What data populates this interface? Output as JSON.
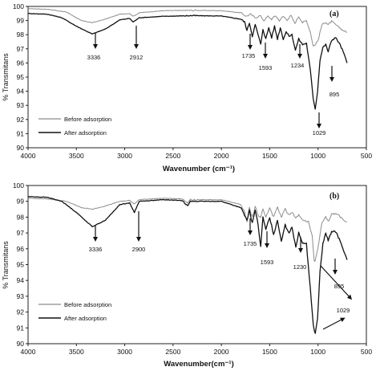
{
  "chart_data": [
    {
      "type": "line",
      "panel_label": "(a)",
      "xlabel": "Wavenumber (cm⁻¹)",
      "ylabel": "% Transmitans",
      "xlim": [
        4000,
        500
      ],
      "ylim": [
        90,
        100
      ],
      "x_ticks": [
        "4000",
        "3500",
        "3000",
        "2500",
        "2000",
        "1500",
        "1000",
        "500"
      ],
      "y_ticks": [
        "90",
        "91",
        "92",
        "93",
        "94",
        "95",
        "96",
        "97",
        "98",
        "99",
        "100"
      ],
      "legend_position": "bottom-left",
      "series": [
        {
          "name": "Before adsorption",
          "color": "#8c8c8c",
          "points": [
            [
              4000,
              99.85
            ],
            [
              3800,
              99.8
            ],
            [
              3600,
              99.6
            ],
            [
              3450,
              99.0
            ],
            [
              3336,
              98.85
            ],
            [
              3200,
              99.1
            ],
            [
              3050,
              99.45
            ],
            [
              2950,
              99.5
            ],
            [
              2912,
              99.3
            ],
            [
              2850,
              99.55
            ],
            [
              2600,
              99.7
            ],
            [
              2300,
              99.72
            ],
            [
              2000,
              99.7
            ],
            [
              1800,
              99.55
            ],
            [
              1740,
              99.3
            ],
            [
              1700,
              99.45
            ],
            [
              1650,
              99.2
            ],
            [
              1600,
              99.35
            ],
            [
              1560,
              99.0
            ],
            [
              1520,
              99.3
            ],
            [
              1480,
              99.1
            ],
            [
              1440,
              99.35
            ],
            [
              1400,
              99.0
            ],
            [
              1360,
              99.3
            ],
            [
              1320,
              99.05
            ],
            [
              1280,
              99.35
            ],
            [
              1240,
              98.8
            ],
            [
              1200,
              99.3
            ],
            [
              1160,
              98.85
            ],
            [
              1120,
              99.0
            ],
            [
              1080,
              98.2
            ],
            [
              1050,
              97.2
            ],
            [
              1029,
              97.3
            ],
            [
              1000,
              97.6
            ],
            [
              960,
              98.7
            ],
            [
              920,
              98.9
            ],
            [
              895,
              98.7
            ],
            [
              860,
              98.95
            ],
            [
              800,
              98.6
            ],
            [
              750,
              98.35
            ],
            [
              700,
              98.15
            ]
          ]
        },
        {
          "name": "After adsorption",
          "color": "#111111",
          "points": [
            [
              4000,
              99.5
            ],
            [
              3800,
              99.45
            ],
            [
              3650,
              99.2
            ],
            [
              3500,
              98.6
            ],
            [
              3336,
              98.05
            ],
            [
              3200,
              98.4
            ],
            [
              3050,
              99.05
            ],
            [
              2950,
              99.15
            ],
            [
              2912,
              98.9
            ],
            [
              2850,
              99.2
            ],
            [
              2600,
              99.3
            ],
            [
              2300,
              99.35
            ],
            [
              2000,
              99.32
            ],
            [
              1800,
              99.1
            ],
            [
              1760,
              98.9
            ],
            [
              1735,
              98.3
            ],
            [
              1710,
              98.85
            ],
            [
              1680,
              97.9
            ],
            [
              1650,
              98.7
            ],
            [
              1620,
              98.0
            ],
            [
              1593,
              97.3
            ],
            [
              1570,
              98.4
            ],
            [
              1540,
              97.7
            ],
            [
              1510,
              98.5
            ],
            [
              1480,
              97.8
            ],
            [
              1450,
              98.6
            ],
            [
              1420,
              97.7
            ],
            [
              1390,
              98.5
            ],
            [
              1360,
              97.7
            ],
            [
              1330,
              98.2
            ],
            [
              1300,
              97.9
            ],
            [
              1270,
              98.0
            ],
            [
              1234,
              96.9
            ],
            [
              1200,
              97.7
            ],
            [
              1160,
              97.3
            ],
            [
              1120,
              97.4
            ],
            [
              1080,
              95.5
            ],
            [
              1050,
              93.5
            ],
            [
              1029,
              92.75
            ],
            [
              1005,
              94.0
            ],
            [
              980,
              96.2
            ],
            [
              950,
              97.1
            ],
            [
              920,
              97.3
            ],
            [
              895,
              96.8
            ],
            [
              860,
              97.6
            ],
            [
              820,
              97.8
            ],
            [
              780,
              97.4
            ],
            [
              740,
              96.8
            ],
            [
              700,
              96.0
            ]
          ]
        }
      ],
      "annotations": [
        "3336",
        "2912",
        "1735",
        "1593",
        "1234",
        "1029",
        "895"
      ]
    },
    {
      "type": "line",
      "panel_label": "(b)",
      "xlabel": "Wavenumber(cm⁻¹)",
      "ylabel": "% Transmitans",
      "xlim": [
        4000,
        500
      ],
      "ylim": [
        90,
        100
      ],
      "x_ticks": [
        "4000",
        "3500",
        "3000",
        "2500",
        "2000",
        "1500",
        "1000",
        "500"
      ],
      "y_ticks": [
        "90",
        "91",
        "92",
        "93",
        "94",
        "95",
        "96",
        "97",
        "98",
        "99",
        "100"
      ],
      "legend_position": "bottom-left",
      "series": [
        {
          "name": "Before adsorption",
          "color": "#8c8c8c",
          "points": [
            [
              4000,
              99.2
            ],
            [
              3800,
              99.15
            ],
            [
              3600,
              99.0
            ],
            [
              3450,
              98.6
            ],
            [
              3336,
              98.5
            ],
            [
              3200,
              98.7
            ],
            [
              3050,
              99.0
            ],
            [
              2950,
              99.05
            ],
            [
              2900,
              98.85
            ],
            [
              2850,
              99.1
            ],
            [
              2600,
              99.2
            ],
            [
              2400,
              99.15
            ],
            [
              2350,
              98.9
            ],
            [
              2320,
              99.1
            ],
            [
              2000,
              99.1
            ],
            [
              1800,
              98.8
            ],
            [
              1760,
              98.3
            ],
            [
              1735,
              97.7
            ],
            [
              1710,
              98.6
            ],
            [
              1680,
              98.0
            ],
            [
              1650,
              98.7
            ],
            [
              1620,
              98.1
            ],
            [
              1593,
              98.0
            ],
            [
              1570,
              98.5
            ],
            [
              1540,
              98.0
            ],
            [
              1500,
              98.6
            ],
            [
              1460,
              98.0
            ],
            [
              1420,
              98.6
            ],
            [
              1380,
              98.0
            ],
            [
              1340,
              98.5
            ],
            [
              1300,
              98.1
            ],
            [
              1260,
              98.3
            ],
            [
              1230,
              97.9
            ],
            [
              1200,
              98.2
            ],
            [
              1160,
              97.8
            ],
            [
              1100,
              97.7
            ],
            [
              1060,
              96.8
            ],
            [
              1040,
              95.3
            ],
            [
              1029,
              95.2
            ],
            [
              1000,
              96.1
            ],
            [
              960,
              97.6
            ],
            [
              920,
              98.0
            ],
            [
              895,
              97.7
            ],
            [
              860,
              98.2
            ],
            [
              800,
              98.2
            ],
            [
              750,
              97.9
            ],
            [
              700,
              97.7
            ]
          ]
        },
        {
          "name": "After adsorption",
          "color": "#111111",
          "points": [
            [
              4000,
              99.3
            ],
            [
              3800,
              99.25
            ],
            [
              3650,
              99.0
            ],
            [
              3500,
              98.3
            ],
            [
              3336,
              97.4
            ],
            [
              3200,
              97.8
            ],
            [
              3050,
              98.8
            ],
            [
              2950,
              98.9
            ],
            [
              2900,
              98.3
            ],
            [
              2850,
              99.0
            ],
            [
              2600,
              99.1
            ],
            [
              2400,
              99.05
            ],
            [
              2350,
              98.7
            ],
            [
              2320,
              99.0
            ],
            [
              2000,
              99.0
            ],
            [
              1800,
              98.6
            ],
            [
              1760,
              98.1
            ],
            [
              1735,
              97.8
            ],
            [
              1710,
              98.4
            ],
            [
              1680,
              97.6
            ],
            [
              1650,
              98.5
            ],
            [
              1620,
              97.5
            ],
            [
              1593,
              96.1
            ],
            [
              1570,
              98.0
            ],
            [
              1540,
              97.2
            ],
            [
              1500,
              98.0
            ],
            [
              1460,
              96.9
            ],
            [
              1420,
              97.8
            ],
            [
              1380,
              96.5
            ],
            [
              1340,
              97.5
            ],
            [
              1300,
              97.0
            ],
            [
              1270,
              97.4
            ],
            [
              1230,
              96.1
            ],
            [
              1200,
              97.0
            ],
            [
              1160,
              96.4
            ],
            [
              1120,
              96.3
            ],
            [
              1080,
              93.5
            ],
            [
              1050,
              91.2
            ],
            [
              1029,
              90.6
            ],
            [
              1005,
              91.6
            ],
            [
              980,
              94.5
            ],
            [
              950,
              96.3
            ],
            [
              920,
              97.0
            ],
            [
              895,
              96.5
            ],
            [
              860,
              97.1
            ],
            [
              820,
              97.1
            ],
            [
              780,
              96.6
            ],
            [
              740,
              96.0
            ],
            [
              700,
              95.3
            ]
          ]
        }
      ],
      "annotations": [
        "3336",
        "2900",
        "1735",
        "1593",
        "1230",
        "1029",
        "895"
      ]
    }
  ]
}
